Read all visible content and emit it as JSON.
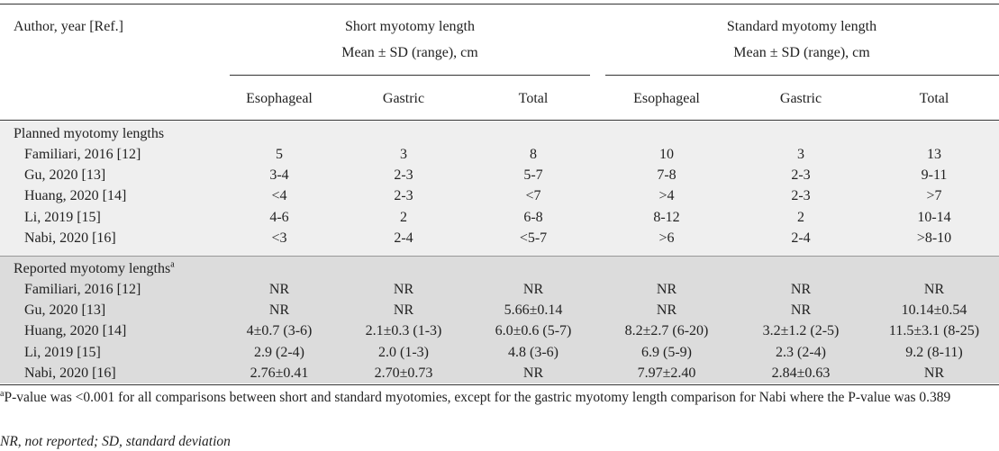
{
  "header": {
    "first_column": "Author, year [Ref.]",
    "groups": [
      {
        "title": "Short myotomy length",
        "subtitle": "Mean ± SD (range), cm",
        "columns": [
          "Esophageal",
          "Gastric",
          "Total"
        ]
      },
      {
        "title": "Standard myotomy length",
        "subtitle": "Mean ± SD (range), cm",
        "columns": [
          "Esophageal",
          "Gastric",
          "Total"
        ]
      }
    ]
  },
  "sections": [
    {
      "label": "Planned myotomy lengths",
      "rows": [
        [
          "Familiari, 2016 [12]",
          "5",
          "3",
          "8",
          "10",
          "3",
          "13"
        ],
        [
          "Gu, 2020 [13]",
          "3-4",
          "2-3",
          "5-7",
          "7-8",
          "2-3",
          "9-11"
        ],
        [
          "Huang, 2020 [14]",
          "<4",
          "2-3",
          "<7",
          ">4",
          "2-3",
          ">7"
        ],
        [
          "Li, 2019 [15]",
          "4-6",
          "2",
          "6-8",
          "8-12",
          "2",
          "10-14"
        ],
        [
          "Nabi, 2020 [16]",
          "<3",
          "2-4",
          "<5-7",
          ">6",
          "2-4",
          ">8-10"
        ]
      ]
    },
    {
      "label": "Reported myotomy lengths",
      "label_sup": "a",
      "rows": [
        [
          "Familiari, 2016 [12]",
          "NR",
          "NR",
          "NR",
          "NR",
          "NR",
          "NR"
        ],
        [
          "Gu, 2020 [13]",
          "NR",
          "NR",
          "5.66±0.14",
          "NR",
          "NR",
          "10.14±0.54"
        ],
        [
          "Huang, 2020 [14]",
          "4±0.7 (3-6)",
          "2.1±0.3 (1-3)",
          "6.0±0.6 (5-7)",
          "8.2±2.7 (6-20)",
          "3.2±1.2 (2-5)",
          "11.5±3.1 (8-25)"
        ],
        [
          "Li, 2019 [15]",
          "2.9 (2-4)",
          "2.0 (1-3)",
          "4.8 (3-6)",
          "6.9 (5-9)",
          "2.3 (2-4)",
          "9.2 (8-11)"
        ],
        [
          "Nabi, 2020 [16]",
          "2.76±0.41",
          "2.70±0.73",
          "NR",
          "7.97±2.40",
          "2.84±0.63",
          "NR"
        ]
      ]
    }
  ],
  "footnotes": [
    {
      "sup": "a",
      "text": "P-value was <0.001 for all comparisons between short and standard myotomies, except for the gastric myotomy length comparison for Nabi where the P-value was 0.389"
    },
    {
      "text": "NR, not reported; SD, standard deviation"
    }
  ]
}
